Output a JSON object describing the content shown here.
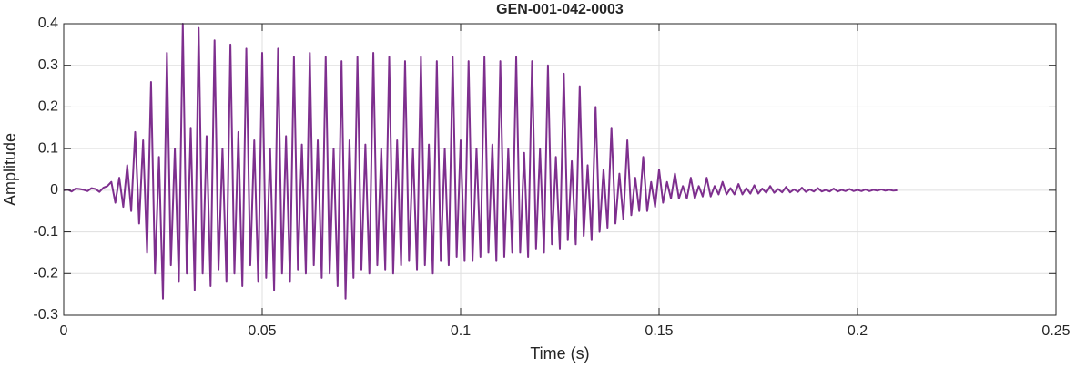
{
  "chart_data": {
    "type": "line",
    "title": "GEN-001-042-0003",
    "x_label": "Time (s)",
    "y_label": "Amplitude",
    "xlim": [
      0,
      0.25
    ],
    "xticks": [
      0,
      0.05,
      0.1,
      0.15,
      0.2,
      0.25
    ],
    "ylim": [
      -0.3,
      0.4
    ],
    "yticks": [
      -0.3,
      -0.2,
      -0.1,
      0,
      0.1,
      0.2,
      0.3,
      0.4
    ],
    "grid": true,
    "x": [
      0,
      0.001,
      0.002,
      0.003,
      0.004,
      0.005,
      0.006,
      0.007,
      0.008,
      0.009,
      0.01,
      0.011,
      0.012,
      0.013,
      0.014,
      0.015,
      0.016,
      0.017,
      0.018,
      0.019,
      0.02,
      0.021,
      0.022,
      0.023,
      0.024,
      0.025,
      0.026,
      0.027,
      0.028,
      0.029,
      0.03,
      0.031,
      0.032,
      0.033,
      0.034,
      0.035,
      0.036,
      0.037,
      0.038,
      0.039,
      0.04,
      0.041,
      0.042,
      0.043,
      0.044,
      0.045,
      0.046,
      0.047,
      0.048,
      0.049,
      0.05,
      0.051,
      0.052,
      0.053,
      0.054,
      0.055,
      0.056,
      0.057,
      0.058,
      0.059,
      0.06,
      0.061,
      0.062,
      0.063,
      0.064,
      0.065,
      0.066,
      0.067,
      0.068,
      0.069,
      0.07,
      0.071,
      0.072,
      0.073,
      0.074,
      0.075,
      0.076,
      0.077,
      0.078,
      0.079,
      0.08,
      0.081,
      0.082,
      0.083,
      0.084,
      0.085,
      0.086,
      0.087,
      0.088,
      0.089,
      0.09,
      0.091,
      0.092,
      0.093,
      0.094,
      0.095,
      0.096,
      0.097,
      0.098,
      0.099,
      0.1,
      0.101,
      0.102,
      0.103,
      0.104,
      0.105,
      0.106,
      0.107,
      0.108,
      0.109,
      0.11,
      0.111,
      0.112,
      0.113,
      0.114,
      0.115,
      0.116,
      0.117,
      0.118,
      0.119,
      0.12,
      0.121,
      0.122,
      0.123,
      0.124,
      0.125,
      0.126,
      0.127,
      0.128,
      0.129,
      0.13,
      0.131,
      0.132,
      0.133,
      0.134,
      0.135,
      0.136,
      0.137,
      0.138,
      0.139,
      0.14,
      0.141,
      0.142,
      0.143,
      0.144,
      0.145,
      0.146,
      0.147,
      0.148,
      0.149,
      0.15,
      0.151,
      0.152,
      0.153,
      0.154,
      0.155,
      0.156,
      0.157,
      0.158,
      0.159,
      0.16,
      0.161,
      0.162,
      0.163,
      0.164,
      0.165,
      0.166,
      0.167,
      0.168,
      0.169,
      0.17,
      0.171,
      0.172,
      0.173,
      0.174,
      0.175,
      0.176,
      0.177,
      0.178,
      0.179,
      0.18,
      0.181,
      0.182,
      0.183,
      0.184,
      0.185,
      0.186,
      0.187,
      0.188,
      0.189,
      0.19,
      0.191,
      0.192,
      0.193,
      0.194,
      0.195,
      0.196,
      0.197,
      0.198,
      0.199,
      0.2,
      0.201,
      0.202,
      0.203,
      0.204,
      0.205,
      0.206,
      0.207,
      0.208,
      0.209,
      0.21
    ],
    "series": [
      {
        "color": "#7e2f8e",
        "values": [
          0,
          0.002,
          -0.003,
          0.004,
          0.003,
          0.001,
          -0.002,
          0.005,
          0.003,
          -0.004,
          0.006,
          0.01,
          0.02,
          -0.03,
          0.03,
          -0.04,
          0.06,
          -0.05,
          0.14,
          -0.08,
          0.12,
          -0.15,
          0.26,
          -0.2,
          0.08,
          -0.26,
          0.33,
          -0.18,
          0.1,
          -0.22,
          0.4,
          -0.2,
          0.15,
          -0.24,
          0.39,
          -0.2,
          0.13,
          -0.23,
          0.36,
          -0.19,
          0.1,
          -0.22,
          0.35,
          -0.2,
          0.14,
          -0.23,
          0.34,
          -0.18,
          0.12,
          -0.22,
          0.33,
          -0.21,
          0.1,
          -0.24,
          0.34,
          -0.2,
          0.13,
          -0.22,
          0.32,
          -0.19,
          0.11,
          -0.2,
          0.33,
          -0.18,
          0.12,
          -0.21,
          0.32,
          -0.2,
          0.1,
          -0.23,
          0.31,
          -0.26,
          0.12,
          -0.21,
          0.32,
          -0.19,
          0.11,
          -0.2,
          0.33,
          -0.18,
          0.1,
          -0.19,
          0.32,
          -0.2,
          0.12,
          -0.18,
          0.31,
          -0.17,
          0.1,
          -0.19,
          0.32,
          -0.18,
          0.11,
          -0.2,
          0.31,
          -0.17,
          0.1,
          -0.18,
          0.32,
          -0.16,
          0.12,
          -0.17,
          0.31,
          -0.17,
          0.1,
          -0.16,
          0.32,
          -0.15,
          0.11,
          -0.17,
          0.31,
          -0.16,
          0.1,
          -0.15,
          0.32,
          -0.15,
          0.09,
          -0.16,
          0.31,
          -0.14,
          0.1,
          -0.15,
          0.3,
          -0.13,
          0.08,
          -0.14,
          0.28,
          -0.12,
          0.07,
          -0.13,
          0.25,
          -0.11,
          0.06,
          -0.12,
          0.2,
          -0.1,
          0.05,
          -0.09,
          0.15,
          -0.08,
          0.04,
          -0.07,
          0.12,
          -0.06,
          0.03,
          -0.05,
          0.08,
          -0.05,
          0.02,
          -0.04,
          0.05,
          -0.03,
          0.02,
          -0.02,
          0.04,
          -0.02,
          0.01,
          -0.02,
          0.03,
          -0.02,
          0.01,
          -0.015,
          0.03,
          -0.015,
          0.01,
          -0.01,
          0.02,
          -0.01,
          0.005,
          -0.01,
          0.015,
          -0.01,
          0.005,
          -0.008,
          0.012,
          -0.008,
          0.004,
          -0.006,
          0.01,
          -0.006,
          0.003,
          -0.005,
          0.008,
          -0.005,
          0.002,
          -0.004,
          0.006,
          -0.004,
          0.002,
          -0.003,
          0.005,
          -0.003,
          0.001,
          -0.003,
          0.004,
          -0.003,
          0.001,
          -0.002,
          0.003,
          -0.002,
          0.001,
          -0.002,
          0.002,
          -0.002,
          0.001,
          -0.001,
          0.002,
          -0.001,
          0.001,
          -0.001,
          0
        ]
      }
    ]
  }
}
